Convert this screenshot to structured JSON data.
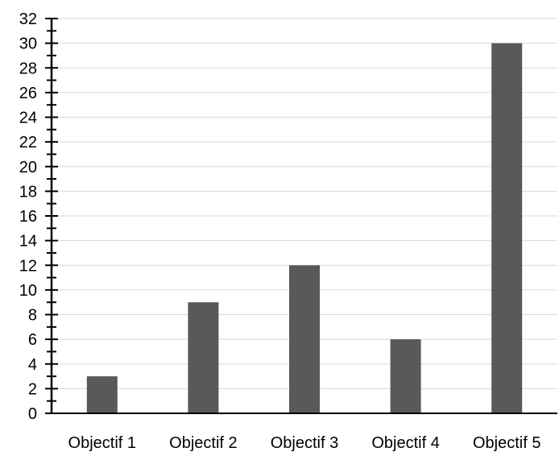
{
  "colors": {
    "bar": "#595959",
    "axis": "#000000",
    "grid": "#d9d9d9",
    "background": "#ffffff"
  },
  "chart_data": {
    "type": "bar",
    "categories": [
      "Objectif 1",
      "Objectif 2",
      "Objectif 3",
      "Objectif 4",
      "Objectif 5"
    ],
    "values": [
      3,
      9,
      12,
      6,
      30
    ],
    "title": "",
    "xlabel": "",
    "ylabel": "",
    "ylim": [
      0,
      32
    ],
    "y_major_step": 2,
    "y_minor_step": 1,
    "y_tick_labels": [
      "0",
      "2",
      "4",
      "6",
      "8",
      "10",
      "12",
      "14",
      "16",
      "18",
      "20",
      "22",
      "24",
      "26",
      "28",
      "30",
      "32"
    ],
    "grid": true,
    "legend": "none"
  }
}
